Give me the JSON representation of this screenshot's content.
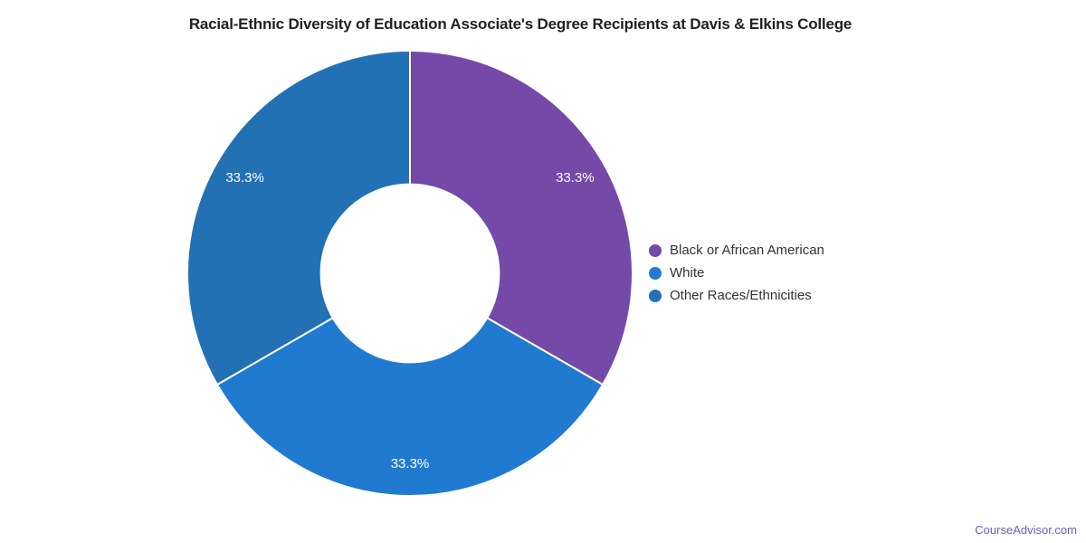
{
  "chart_data": {
    "type": "pie",
    "subtype": "donut",
    "title": "Racial-Ethnic Diversity of Education Associate's Degree Recipients at Davis & Elkins College",
    "categories": [
      "Black or African American",
      "White",
      "Other Races/Ethnicities"
    ],
    "values": [
      33.3,
      33.3,
      33.3
    ],
    "slice_labels": [
      "33.3%",
      "33.3%",
      "33.3%"
    ],
    "colors": [
      "#7449A8",
      "#207BD0",
      "#2371B5"
    ],
    "slice_label_color": "#FFFFFF",
    "slice_border_color": "#FFFFFF",
    "start_angle_deg": 0,
    "direction": "clockwise",
    "inner_radius_ratio": 0.4,
    "legend_position": "right",
    "legend_text_color": "#333333",
    "title_color": "#212121",
    "grid": false
  },
  "watermark": {
    "text": "CourseAdvisor.com",
    "color": "#6E5BC6"
  }
}
